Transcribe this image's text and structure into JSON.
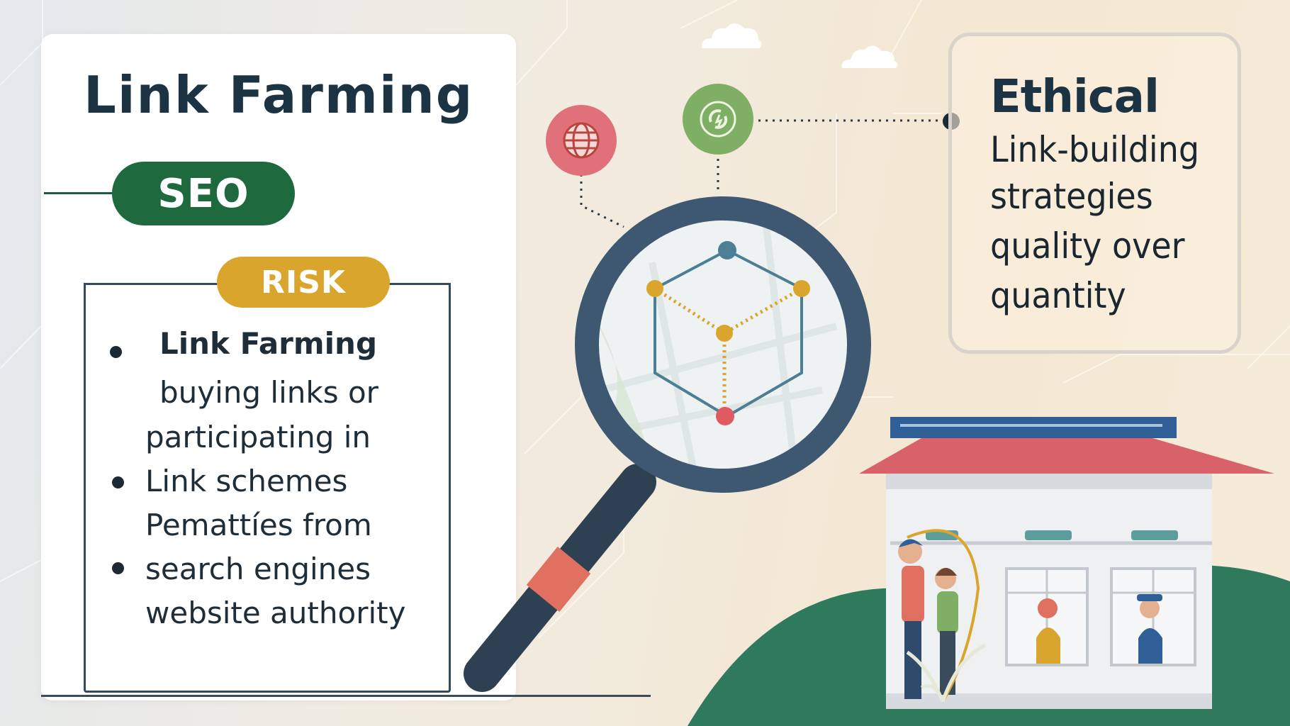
{
  "left_card": {
    "title": "Link Farming",
    "seo_label": "SEO",
    "risk_label": "RISK",
    "risk_items": [
      {
        "text": "Link Farming",
        "bold": true,
        "bullet": true
      },
      {
        "text": "buying links  or",
        "bold": false,
        "bullet": false
      },
      {
        "text": "participating  in",
        "bold": false,
        "bullet": false
      },
      {
        "text": "Link  schemes",
        "bold": false,
        "bullet": true
      },
      {
        "text": "Pemattíes  from",
        "bold": false,
        "bullet": false
      },
      {
        "text": "search engines",
        "bold": false,
        "bullet": true
      },
      {
        "text": "website  authority",
        "bold": false,
        "bullet": false
      }
    ]
  },
  "ethical_card": {
    "title": "Ethical",
    "lines": [
      "Link-building",
      "strategies",
      "quality  over",
      "quantity"
    ]
  },
  "icons": {
    "globe": "globe-icon",
    "refresh": "refresh-icon",
    "magnifier": "magnifier-icon",
    "cloud": "cloud-icon",
    "house": "house-icon"
  },
  "colors": {
    "title": "#1c3344",
    "seo_green": "#1e6a3e",
    "risk_gold": "#d9a52c",
    "globe_red": "#e0707a",
    "refresh_green": "#7fae65",
    "magnifier_frame": "#3d5870",
    "roof_red": "#d9616a",
    "hill_green": "#2f7a5c"
  }
}
